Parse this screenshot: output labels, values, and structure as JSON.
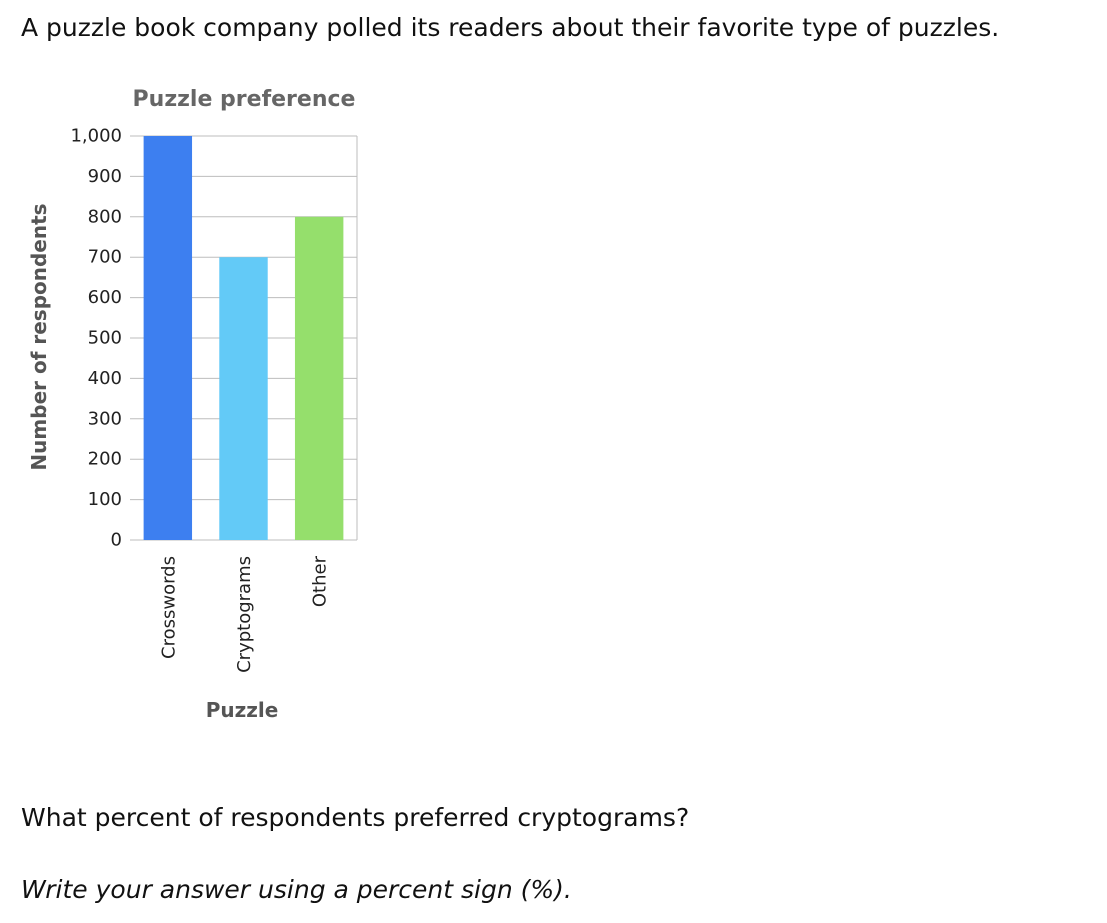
{
  "intro_text": "A puzzle book company polled its readers about their favorite type of puzzles.",
  "question_text": "What percent of respondents preferred cryptograms?",
  "instruction_text": "Write your answer using a percent sign (%).",
  "chart_data": {
    "type": "bar",
    "title": "Puzzle preference",
    "xlabel": "Puzzle",
    "ylabel": "Number of respondents",
    "categories": [
      "Crosswords",
      "Cryptograms",
      "Other"
    ],
    "values": [
      1000,
      700,
      800
    ],
    "ylim": [
      0,
      1000
    ],
    "yticks": [
      0,
      100,
      200,
      300,
      400,
      500,
      600,
      700,
      800,
      900,
      1000
    ],
    "ytick_labels": [
      "0",
      "100",
      "200",
      "300",
      "400",
      "500",
      "600",
      "700",
      "800",
      "900",
      "1,000"
    ],
    "grid": true,
    "colors": [
      "#3d7ff0",
      "#63caf7",
      "#95df6c"
    ]
  }
}
